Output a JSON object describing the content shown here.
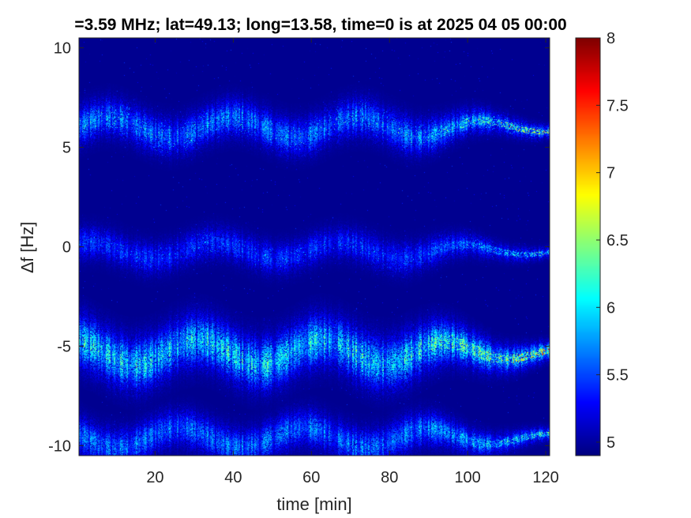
{
  "chart_data": {
    "type": "heatmap",
    "title": "=3.59 MHz;  lat=49.13; long=13.58, time=0 is at 2025 04 05 00:00",
    "xlabel": "time [min]",
    "ylabel": "∆f [Hz]",
    "xlim": [
      0.5,
      121
    ],
    "ylim": [
      -10.5,
      10.5
    ],
    "xticks": [
      20,
      40,
      60,
      80,
      100,
      120
    ],
    "yticks": [
      10,
      5,
      0,
      -5,
      -10
    ],
    "colorbar": {
      "clim": [
        4.9,
        8
      ],
      "ticks": [
        5,
        5.5,
        6,
        6.5,
        7,
        7.5,
        8
      ],
      "colormap": "jet"
    },
    "background_value": 4.95,
    "bands": [
      {
        "center_hz": 6.0,
        "mean_level": 5.6,
        "peak_level": 7.3,
        "wobble_amplitude_hz": 0.5,
        "width_hz": 1.6
      },
      {
        "center_hz": -0.2,
        "mean_level": 5.4,
        "peak_level": 6.6,
        "wobble_amplitude_hz": 0.4,
        "width_hz": 1.4
      },
      {
        "center_hz": -5.3,
        "mean_level": 5.9,
        "peak_level": 7.4,
        "wobble_amplitude_hz": 0.6,
        "width_hz": 2.2
      },
      {
        "center_hz": -9.6,
        "mean_level": 5.6,
        "peak_level": 6.6,
        "wobble_amplitude_hz": 0.5,
        "width_hz": 1.6
      }
    ]
  },
  "colors": {
    "background": "#ffffff",
    "axis": "#262626",
    "plot_background": "#00008f"
  }
}
